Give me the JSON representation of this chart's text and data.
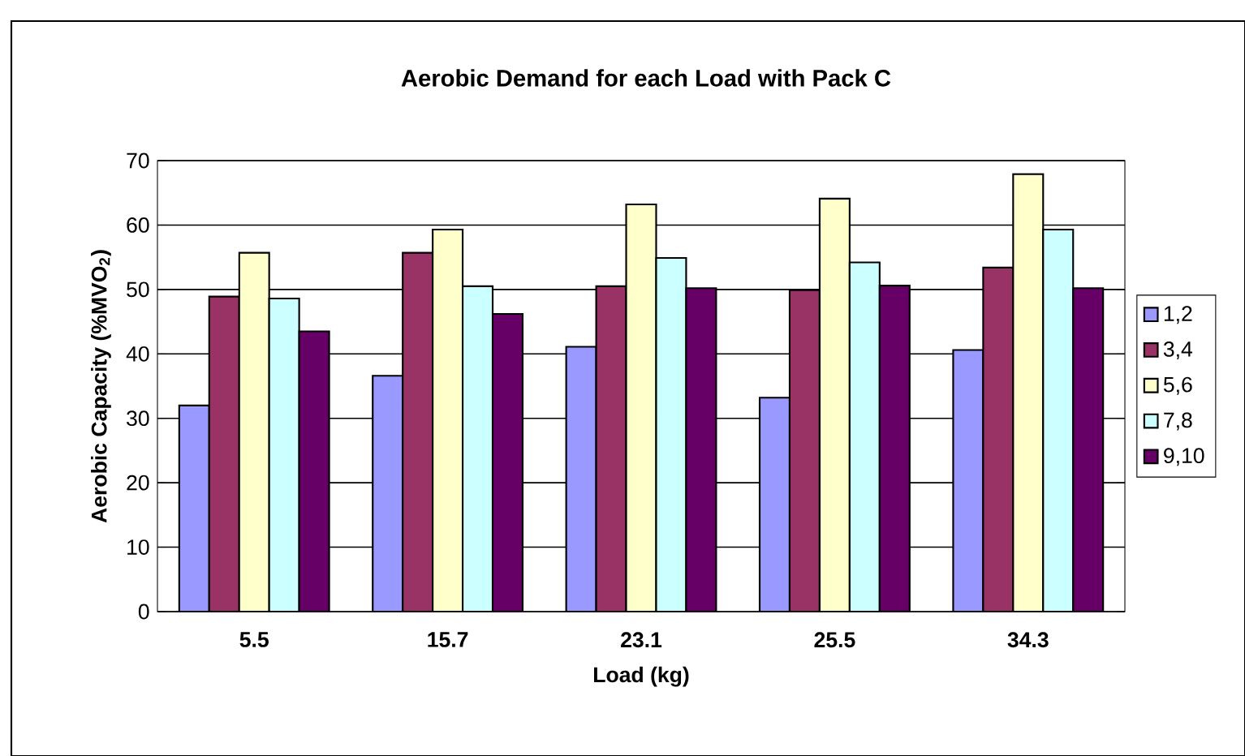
{
  "chart_data": {
    "type": "bar",
    "title": "Aerobic Demand for each Load with Pack C",
    "xlabel": "Load (kg)",
    "ylabel": "Aerobic Capacity (%MVO$_{2}$)",
    "categories": [
      "5.5",
      "15.7",
      "23.1",
      "25.5",
      "34.3"
    ],
    "series": [
      {
        "name": "1,2",
        "color": "#9999ff",
        "values": [
          32.0,
          36.6,
          41.1,
          33.2,
          40.6
        ]
      },
      {
        "name": "3,4",
        "color": "#993366",
        "values": [
          48.9,
          55.7,
          50.5,
          49.9,
          53.4
        ]
      },
      {
        "name": "5,6",
        "color": "#ffffcc",
        "values": [
          55.7,
          59.3,
          63.2,
          64.1,
          67.9
        ]
      },
      {
        "name": "7,8",
        "color": "#ccffff",
        "values": [
          48.6,
          50.5,
          54.9,
          54.2,
          59.3
        ]
      },
      {
        "name": "9,10",
        "color": "#660066",
        "values": [
          43.5,
          46.2,
          50.2,
          50.6,
          50.2
        ]
      }
    ],
    "ylim": [
      0,
      70
    ],
    "yticks": [
      0,
      10,
      20,
      30,
      40,
      50,
      60,
      70
    ],
    "grid": "y",
    "legend": "right"
  }
}
